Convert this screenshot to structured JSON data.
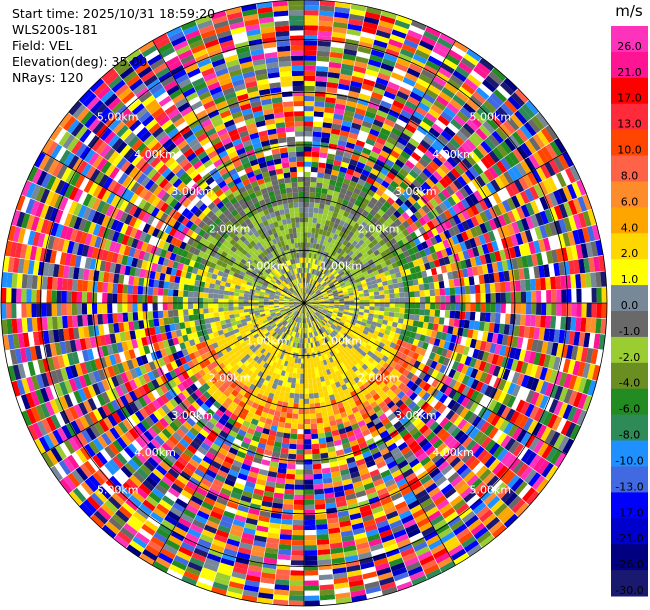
{
  "info": {
    "start_time": "Start time: 2025/10/31 18:59:20",
    "instrument": "WLS200s-181",
    "field": "Field: VEL",
    "elevation": "Elevation(deg): 35.00",
    "nrays": "NRays: 120"
  },
  "chart_data": {
    "type": "ppi",
    "field": "VEL",
    "units": "m/s",
    "nrays": 120,
    "elevation_deg": 35.0,
    "range_rings_km": [
      1,
      2,
      3,
      4,
      5
    ],
    "ring_labels": [
      "1.00km",
      "2.00km",
      "3.00km",
      "4.00km",
      "5.00km"
    ],
    "max_range_km": 5.75,
    "colorbar": {
      "unit_label": "m/s",
      "ticks": [
        "26.0",
        "21.0",
        "17.0",
        "13.0",
        "10.0",
        "8.0",
        "6.0",
        "4.0",
        "2.0",
        "1.0",
        "0.0",
        "-1.0",
        "-2.0",
        "-4.0",
        "-6.0",
        "-8.0",
        "-10.0",
        "-13.0",
        "-17.0",
        "-21.0",
        "-26.0",
        "-30.0"
      ],
      "colors": [
        "#ff33bb",
        "#ff1493",
        "#ff0000",
        "#ff2a3a",
        "#ff4500",
        "#ff6347",
        "#ff8c2a",
        "#ffa500",
        "#ffd700",
        "#ffff00",
        "#778899",
        "#696969",
        "#9acd32",
        "#6b8e23",
        "#228b22",
        "#2e8b57",
        "#1e90ff",
        "#4169e1",
        "#0000ff",
        "#0000cd",
        "#000080",
        "#191970"
      ]
    },
    "structure": {
      "near_range_km": 0.9,
      "mid_range_km": 1.95,
      "clean_range_km": 2.35,
      "noise_from_km": 2.5
    }
  }
}
